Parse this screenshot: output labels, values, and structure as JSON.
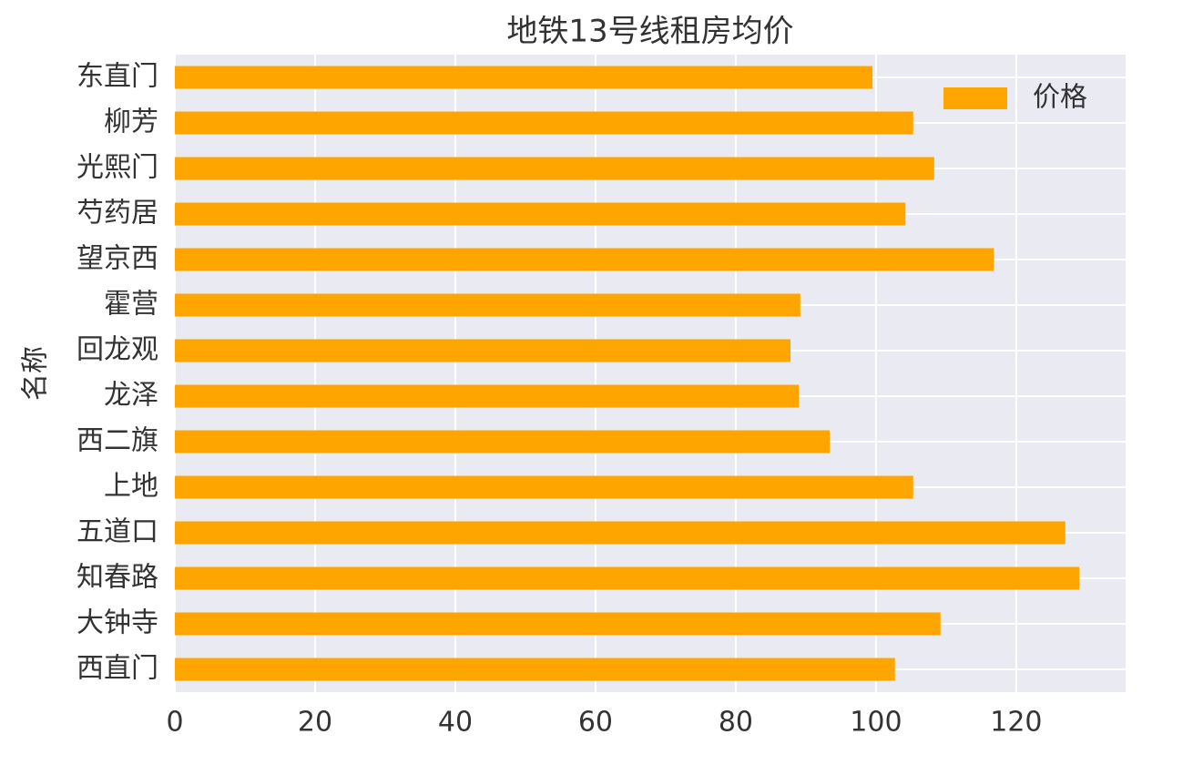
{
  "chart_data": {
    "type": "barh",
    "title": "地铁13号线租房均价",
    "ylabel": "名称",
    "categories": [
      "东直门",
      "柳芳",
      "光熙门",
      "芍药居",
      "望京西",
      "霍营",
      "回龙观",
      "龙泽",
      "西二旗",
      "上地",
      "五道口",
      "知春路",
      "大钟寺",
      "西直门"
    ],
    "series": [
      {
        "name": "价格",
        "color": "#ffa500",
        "values": [
          99.5,
          105.3,
          108.3,
          104.2,
          116.8,
          89.2,
          87.8,
          89.0,
          93.4,
          105.3,
          127.0,
          129.0,
          109.2,
          102.7
        ]
      }
    ],
    "xlim": [
      0,
      135.6
    ],
    "xticks": [
      0,
      20,
      40,
      60,
      80,
      100,
      120
    ],
    "grid": true,
    "legend": "upper right"
  }
}
